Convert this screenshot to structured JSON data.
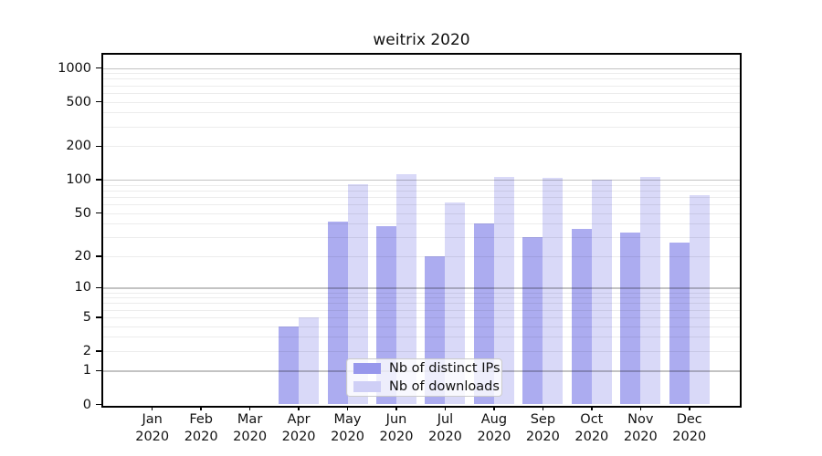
{
  "title": "weitrix 2020",
  "chart_data": {
    "type": "bar",
    "title": "weitrix 2020",
    "categories": [
      "Jan 2020",
      "Feb 2020",
      "Mar 2020",
      "Apr 2020",
      "May 2020",
      "Jun 2020",
      "Jul 2020",
      "Aug 2020",
      "Sep 2020",
      "Oct 2020",
      "Nov 2020",
      "Dec 2020"
    ],
    "series": [
      {
        "name": "Nb of distinct IPs",
        "color": "#9797ec",
        "values": [
          0,
          0,
          0,
          4,
          42,
          38,
          20,
          40,
          30,
          36,
          33,
          27
        ]
      },
      {
        "name": "Nb of downloads",
        "color": "#cfcff6",
        "values": [
          0,
          0,
          0,
          5,
          91,
          113,
          62,
          105,
          104,
          100,
          105,
          73
        ]
      }
    ],
    "xlabel": "",
    "ylabel": "",
    "y_scale": "log1p",
    "y_ticks": [
      0,
      1,
      2,
      5,
      10,
      20,
      50,
      100,
      200,
      500,
      1000
    ],
    "ylim": [
      0,
      1300
    ],
    "grid": true,
    "grid_major_at": [
      1,
      10,
      100,
      1000
    ],
    "legend_position": "lower center"
  },
  "legend": {
    "items": [
      {
        "label": "Nb of distinct IPs",
        "swatch": "ips"
      },
      {
        "label": "Nb of downloads",
        "swatch": "downloads"
      }
    ]
  }
}
